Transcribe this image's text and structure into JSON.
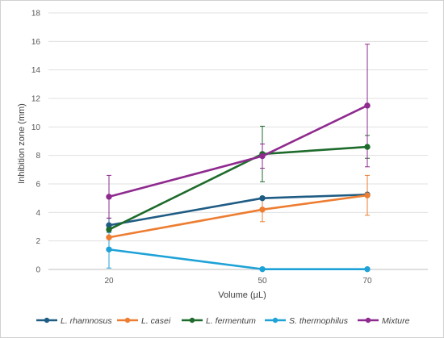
{
  "chart_data": {
    "type": "line",
    "title": "",
    "xlabel": "Volume (µL)",
    "ylabel": "Inhibition zone (mm)",
    "categories": [
      "20",
      "50",
      "70"
    ],
    "ylim": [
      0,
      18
    ],
    "yticks": [
      "0",
      "2",
      "4",
      "6",
      "8",
      "10",
      "12",
      "14",
      "16",
      "18"
    ],
    "grid": "horizontal",
    "legend_position": "bottom",
    "series": [
      {
        "name": "L. rhamnosus",
        "color": "#1f5c84",
        "values": [
          3.1,
          5.0,
          5.25
        ],
        "err": [
          0.5,
          0,
          0
        ]
      },
      {
        "name": "L. casei",
        "color": "#ed7d31",
        "values": [
          2.25,
          4.2,
          5.2
        ],
        "err": [
          0,
          0.85,
          1.4
        ]
      },
      {
        "name": "L. fermentum",
        "color": "#1e6b2c",
        "values": [
          2.8,
          8.1,
          8.6
        ],
        "err": [
          0,
          1.95,
          0.8
        ]
      },
      {
        "name": "S. thermophilus",
        "color": "#1ea2d7",
        "values": [
          1.4,
          0.02,
          0.02
        ],
        "err": [
          1.3,
          0,
          0
        ]
      },
      {
        "name": "Mixture",
        "color": "#8f2a8f",
        "values": [
          5.1,
          7.95,
          11.5
        ],
        "err": [
          1.5,
          0.85,
          4.3
        ]
      }
    ]
  }
}
